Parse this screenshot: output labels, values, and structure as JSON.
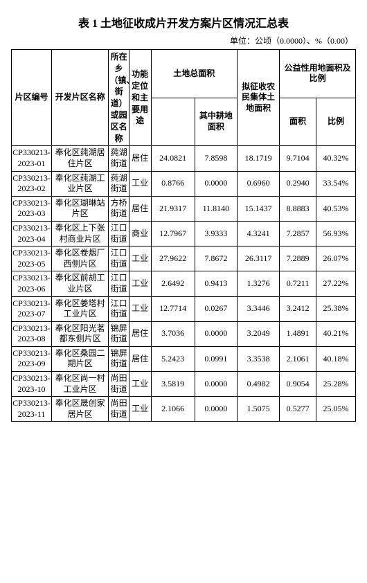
{
  "title": "表 1 土地征收成片开发方案片区情况汇总表",
  "unit": "单位：公顷（0.0000）、%（0.00）",
  "headers": {
    "id": "片区编号",
    "name": "开发片区名称",
    "town": "所在乡（镇、街道）或园区名称",
    "use": "功能定位和主要用途",
    "total_group": "土地总面积",
    "total_sub_gd": "其中耕地面积",
    "coll": "拟征收农民集体土地面积",
    "pub_group": "公益性用地面积及比例",
    "pub_area": "面积",
    "pub_pct": "比例"
  },
  "rows": [
    {
      "id": "CP330213-2023-01",
      "name": "奉化区莼湖居住片区",
      "town": "莼湖街道",
      "use": "居住",
      "total": "24.0821",
      "gd": "7.8598",
      "coll": "18.1719",
      "pub_area": "9.7104",
      "pub_pct": "40.32%"
    },
    {
      "id": "CP330213-2023-02",
      "name": "奉化区莼湖工业片区",
      "town": "莼湖街道",
      "use": "工业",
      "total": "0.8766",
      "gd": "0.0000",
      "coll": "0.6960",
      "pub_area": "0.2940",
      "pub_pct": "33.54%"
    },
    {
      "id": "CP330213-2023-03",
      "name": "奉化区瑚琳站片区",
      "town": "方桥街道",
      "use": "居住",
      "total": "21.9317",
      "gd": "11.8140",
      "coll": "15.1437",
      "pub_area": "8.8883",
      "pub_pct": "40.53%"
    },
    {
      "id": "CP330213-2023-04",
      "name": "奉化区上下张村商业片区",
      "town": "江口街道",
      "use": "商业",
      "total": "12.7967",
      "gd": "3.9333",
      "coll": "4.3241",
      "pub_area": "7.2857",
      "pub_pct": "56.93%"
    },
    {
      "id": "CP330213-2023-05",
      "name": "奉化区卷烟厂西侧片区",
      "town": "江口街道",
      "use": "工业",
      "total": "27.9622",
      "gd": "7.8672",
      "coll": "26.3117",
      "pub_area": "7.2889",
      "pub_pct": "26.07%"
    },
    {
      "id": "CP330213-2023-06",
      "name": "奉化区前胡工业片区",
      "town": "江口街道",
      "use": "工业",
      "total": "2.6492",
      "gd": "0.9413",
      "coll": "1.3276",
      "pub_area": "0.7211",
      "pub_pct": "27.22%"
    },
    {
      "id": "CP330213-2023-07",
      "name": "奉化区姜塔村工业片区",
      "town": "江口街道",
      "use": "工业",
      "total": "12.7714",
      "gd": "0.0267",
      "coll": "3.3446",
      "pub_area": "3.2412",
      "pub_pct": "25.38%"
    },
    {
      "id": "CP330213-2023-08",
      "name": "奉化区阳光茗都东侧片区",
      "town": "锦屏街道",
      "use": "居住",
      "total": "3.7036",
      "gd": "0.0000",
      "coll": "3.2049",
      "pub_area": "1.4891",
      "pub_pct": "40.21%"
    },
    {
      "id": "CP330213-2023-09",
      "name": "奉化区桑园二期片区",
      "town": "锦屏街道",
      "use": "居住",
      "total": "5.2423",
      "gd": "0.0991",
      "coll": "3.3538",
      "pub_area": "2.1061",
      "pub_pct": "40.18%"
    },
    {
      "id": "CP330213-2023-10",
      "name": "奉化区尚一村工业片区",
      "town": "尚田街道",
      "use": "工业",
      "total": "3.5819",
      "gd": "0.0000",
      "coll": "0.4982",
      "pub_area": "0.9054",
      "pub_pct": "25.28%"
    },
    {
      "id": "CP330213-2023-11",
      "name": "奉化区晟创家居片区",
      "town": "尚田街道",
      "use": "工业",
      "total": "2.1066",
      "gd": "0.0000",
      "coll": "1.5075",
      "pub_area": "0.5277",
      "pub_pct": "25.05%"
    }
  ]
}
